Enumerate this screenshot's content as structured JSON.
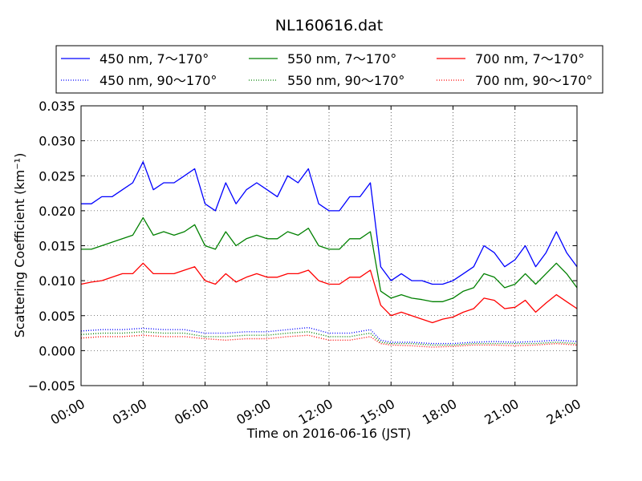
{
  "chart_data": {
    "type": "line",
    "title": "NL160616.dat",
    "xlabel": "Time on 2016-06-16 (JST)",
    "ylabel": "Scattering Coefficient (km⁻¹)",
    "x_unit": "hours",
    "xlim": [
      0,
      24
    ],
    "ylim": [
      -0.005,
      0.035
    ],
    "x_ticks": [
      0,
      3,
      6,
      9,
      12,
      15,
      18,
      21,
      24
    ],
    "x_tick_labels": [
      "00:00",
      "03:00",
      "06:00",
      "09:00",
      "12:00",
      "15:00",
      "18:00",
      "21:00",
      "24:00"
    ],
    "y_ticks": [
      -0.005,
      0.0,
      0.005,
      0.01,
      0.015,
      0.02,
      0.025,
      0.03,
      0.035
    ],
    "y_tick_labels": [
      "−0.005",
      "0.000",
      "0.005",
      "0.010",
      "0.015",
      "0.020",
      "0.025",
      "0.030",
      "0.035"
    ],
    "grid": true,
    "legend_position": "top (above plot, 3 columns)",
    "series": [
      {
        "name": "450 nm, 7～170°",
        "color": "#0000ff",
        "style": "solid",
        "x": [
          0,
          0.5,
          1,
          1.5,
          2,
          2.5,
          3,
          3.5,
          4,
          4.5,
          5,
          5.5,
          6,
          6.5,
          7,
          7.5,
          8,
          8.5,
          9,
          9.5,
          10,
          10.5,
          11,
          11.5,
          12,
          12.5,
          13,
          13.5,
          14,
          14.5,
          15,
          15.5,
          16,
          16.5,
          17,
          17.5,
          18,
          18.5,
          19,
          19.5,
          20,
          20.5,
          21,
          21.5,
          22,
          22.5,
          23,
          23.5,
          24
        ],
        "y": [
          0.021,
          0.021,
          0.022,
          0.022,
          0.023,
          0.024,
          0.027,
          0.023,
          0.024,
          0.024,
          0.025,
          0.026,
          0.021,
          0.02,
          0.024,
          0.021,
          0.023,
          0.024,
          0.023,
          0.022,
          0.025,
          0.024,
          0.026,
          0.021,
          0.02,
          0.02,
          0.022,
          0.022,
          0.024,
          0.012,
          0.01,
          0.011,
          0.01,
          0.01,
          0.0095,
          0.0095,
          0.01,
          0.011,
          0.012,
          0.015,
          0.014,
          0.012,
          0.013,
          0.015,
          0.012,
          0.014,
          0.017,
          0.014,
          0.012
        ]
      },
      {
        "name": "550 nm, 7～170°",
        "color": "#008000",
        "style": "solid",
        "x": [
          0,
          0.5,
          1,
          1.5,
          2,
          2.5,
          3,
          3.5,
          4,
          4.5,
          5,
          5.5,
          6,
          6.5,
          7,
          7.5,
          8,
          8.5,
          9,
          9.5,
          10,
          10.5,
          11,
          11.5,
          12,
          12.5,
          13,
          13.5,
          14,
          14.5,
          15,
          15.5,
          16,
          16.5,
          17,
          17.5,
          18,
          18.5,
          19,
          19.5,
          20,
          20.5,
          21,
          21.5,
          22,
          22.5,
          23,
          23.5,
          24
        ],
        "y": [
          0.0145,
          0.0145,
          0.015,
          0.0155,
          0.016,
          0.0165,
          0.019,
          0.0165,
          0.017,
          0.0165,
          0.017,
          0.018,
          0.015,
          0.0145,
          0.017,
          0.015,
          0.016,
          0.0165,
          0.016,
          0.016,
          0.017,
          0.0165,
          0.0175,
          0.015,
          0.0145,
          0.0145,
          0.016,
          0.016,
          0.017,
          0.0085,
          0.0075,
          0.008,
          0.0075,
          0.0073,
          0.007,
          0.007,
          0.0075,
          0.0085,
          0.009,
          0.011,
          0.0105,
          0.009,
          0.0095,
          0.011,
          0.0095,
          0.011,
          0.0125,
          0.011,
          0.009
        ]
      },
      {
        "name": "700 nm, 7～170°",
        "color": "#ff0000",
        "style": "solid",
        "x": [
          0,
          0.5,
          1,
          1.5,
          2,
          2.5,
          3,
          3.5,
          4,
          4.5,
          5,
          5.5,
          6,
          6.5,
          7,
          7.5,
          8,
          8.5,
          9,
          9.5,
          10,
          10.5,
          11,
          11.5,
          12,
          12.5,
          13,
          13.5,
          14,
          14.5,
          15,
          15.5,
          16,
          16.5,
          17,
          17.5,
          18,
          18.5,
          19,
          19.5,
          20,
          20.5,
          21,
          21.5,
          22,
          22.5,
          23,
          23.5,
          24
        ],
        "y": [
          0.0095,
          0.0098,
          0.01,
          0.0105,
          0.011,
          0.011,
          0.0125,
          0.011,
          0.011,
          0.011,
          0.0115,
          0.012,
          0.01,
          0.0095,
          0.011,
          0.0098,
          0.0105,
          0.011,
          0.0105,
          0.0105,
          0.011,
          0.011,
          0.0115,
          0.01,
          0.0095,
          0.0095,
          0.0105,
          0.0105,
          0.0115,
          0.0065,
          0.005,
          0.0055,
          0.005,
          0.0045,
          0.004,
          0.0045,
          0.0048,
          0.0055,
          0.006,
          0.0075,
          0.0072,
          0.006,
          0.0062,
          0.0072,
          0.0055,
          0.0068,
          0.008,
          0.007,
          0.006
        ]
      },
      {
        "name": "450 nm, 90～170°",
        "color": "#0000ff",
        "style": "dotted",
        "x": [
          0,
          1,
          2,
          3,
          4,
          5,
          6,
          7,
          8,
          9,
          10,
          11,
          12,
          13,
          14,
          14.5,
          15,
          16,
          17,
          18,
          19,
          20,
          21,
          22,
          23,
          24
        ],
        "y": [
          0.0028,
          0.003,
          0.003,
          0.0032,
          0.003,
          0.003,
          0.0025,
          0.0025,
          0.0027,
          0.0027,
          0.003,
          0.0033,
          0.0025,
          0.0025,
          0.003,
          0.0015,
          0.0012,
          0.0012,
          0.001,
          0.001,
          0.0012,
          0.0013,
          0.0012,
          0.0013,
          0.0015,
          0.0013
        ]
      },
      {
        "name": "550 nm, 90～170°",
        "color": "#008000",
        "style": "dotted",
        "x": [
          0,
          1,
          2,
          3,
          4,
          5,
          6,
          7,
          8,
          9,
          10,
          11,
          12,
          13,
          14,
          14.5,
          15,
          16,
          17,
          18,
          19,
          20,
          21,
          22,
          23,
          24
        ],
        "y": [
          0.0023,
          0.0025,
          0.0025,
          0.0027,
          0.0025,
          0.0025,
          0.002,
          0.002,
          0.0022,
          0.0022,
          0.0025,
          0.0027,
          0.002,
          0.002,
          0.0025,
          0.0012,
          0.001,
          0.001,
          0.0008,
          0.0008,
          0.001,
          0.001,
          0.001,
          0.001,
          0.0012,
          0.001
        ]
      },
      {
        "name": "700 nm, 90～170°",
        "color": "#ff0000",
        "style": "dotted",
        "x": [
          0,
          1,
          2,
          3,
          4,
          5,
          6,
          7,
          8,
          9,
          10,
          11,
          12,
          13,
          14,
          14.5,
          15,
          16,
          17,
          18,
          19,
          20,
          21,
          22,
          23,
          24
        ],
        "y": [
          0.0018,
          0.002,
          0.002,
          0.0022,
          0.002,
          0.002,
          0.0017,
          0.0015,
          0.0017,
          0.0017,
          0.002,
          0.0022,
          0.0015,
          0.0015,
          0.002,
          0.001,
          0.0008,
          0.0007,
          0.0005,
          0.0006,
          0.0008,
          0.0008,
          0.0007,
          0.0008,
          0.001,
          0.0008
        ]
      }
    ],
    "legend_order": [
      0,
      1,
      2,
      3,
      4,
      5
    ]
  }
}
